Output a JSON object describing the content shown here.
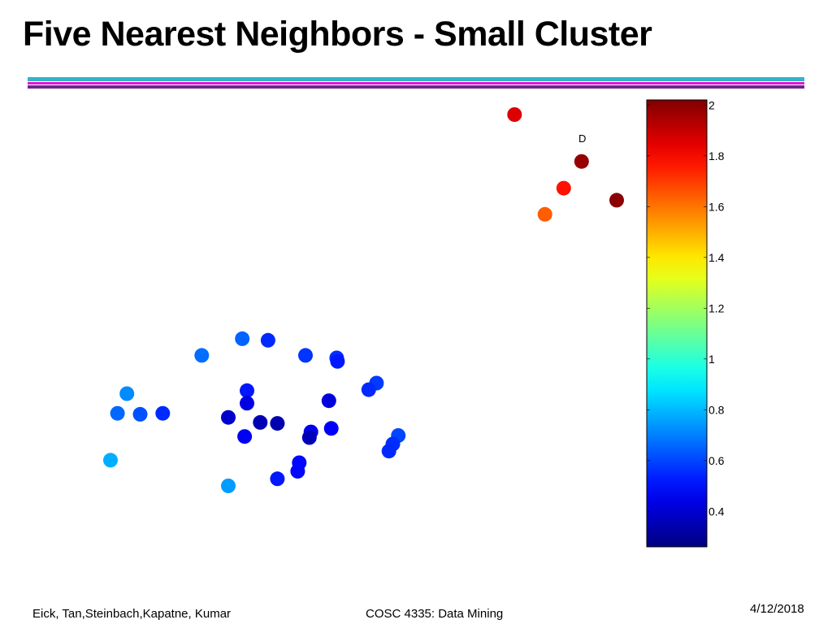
{
  "slide": {
    "title": "Five Nearest Neighbors - Small Cluster",
    "rule_colors": [
      "#2fb5c7",
      "#e810d6",
      "#6a2a8c"
    ]
  },
  "footer": {
    "authors": "Eick, Tan,Steinbach,Kapatne, Kumar",
    "course": "COSC 4335: Data Mining",
    "date": "4/12/2018"
  },
  "chart_data": {
    "type": "scatter",
    "title": "",
    "xlabel": "",
    "ylabel": "",
    "axes_visible": false,
    "grid": false,
    "colormap": "jet",
    "colorbar": {
      "position": "right",
      "clim": [
        0.26,
        2.02
      ],
      "ticks": [
        0.4,
        0.6,
        0.8,
        1,
        1.2,
        1.4,
        1.6,
        1.8,
        2
      ],
      "tick_labels": [
        "0.4",
        "0.6",
        "0.8",
        "1",
        "1.2",
        "1.4",
        "1.6",
        "1.8",
        "2"
      ]
    },
    "annotations": [
      {
        "text": "D",
        "x": 0.7,
        "y": 0.903
      }
    ],
    "points": [
      {
        "x": 0.618,
        "y": 0.958,
        "value": 1.86
      },
      {
        "x": 0.704,
        "y": 0.865,
        "value": 1.98
      },
      {
        "x": 0.681,
        "y": 0.812,
        "value": 1.77
      },
      {
        "x": 0.749,
        "y": 0.788,
        "value": 2.0
      },
      {
        "x": 0.657,
        "y": 0.76,
        "value": 1.64
      },
      {
        "x": 0.269,
        "y": 0.513,
        "value": 0.65
      },
      {
        "x": 0.302,
        "y": 0.51,
        "value": 0.55
      },
      {
        "x": 0.217,
        "y": 0.48,
        "value": 0.67
      },
      {
        "x": 0.35,
        "y": 0.48,
        "value": 0.57
      },
      {
        "x": 0.39,
        "y": 0.475,
        "value": 0.56
      },
      {
        "x": 0.391,
        "y": 0.468,
        "value": 0.52
      },
      {
        "x": 0.441,
        "y": 0.425,
        "value": 0.58
      },
      {
        "x": 0.431,
        "y": 0.412,
        "value": 0.55
      },
      {
        "x": 0.275,
        "y": 0.41,
        "value": 0.52
      },
      {
        "x": 0.121,
        "y": 0.404,
        "value": 0.72
      },
      {
        "x": 0.38,
        "y": 0.39,
        "value": 0.42
      },
      {
        "x": 0.275,
        "y": 0.385,
        "value": 0.43
      },
      {
        "x": 0.109,
        "y": 0.365,
        "value": 0.66
      },
      {
        "x": 0.138,
        "y": 0.363,
        "value": 0.62
      },
      {
        "x": 0.167,
        "y": 0.365,
        "value": 0.55
      },
      {
        "x": 0.251,
        "y": 0.357,
        "value": 0.39
      },
      {
        "x": 0.292,
        "y": 0.347,
        "value": 0.35
      },
      {
        "x": 0.314,
        "y": 0.345,
        "value": 0.34
      },
      {
        "x": 0.383,
        "y": 0.335,
        "value": 0.48
      },
      {
        "x": 0.357,
        "y": 0.328,
        "value": 0.45
      },
      {
        "x": 0.355,
        "y": 0.317,
        "value": 0.36
      },
      {
        "x": 0.272,
        "y": 0.319,
        "value": 0.46
      },
      {
        "x": 0.469,
        "y": 0.321,
        "value": 0.6
      },
      {
        "x": 0.462,
        "y": 0.304,
        "value": 0.56
      },
      {
        "x": 0.457,
        "y": 0.29,
        "value": 0.55
      },
      {
        "x": 0.1,
        "y": 0.272,
        "value": 0.78
      },
      {
        "x": 0.342,
        "y": 0.267,
        "value": 0.49
      },
      {
        "x": 0.34,
        "y": 0.25,
        "value": 0.49
      },
      {
        "x": 0.314,
        "y": 0.235,
        "value": 0.52
      },
      {
        "x": 0.251,
        "y": 0.221,
        "value": 0.75
      }
    ]
  }
}
